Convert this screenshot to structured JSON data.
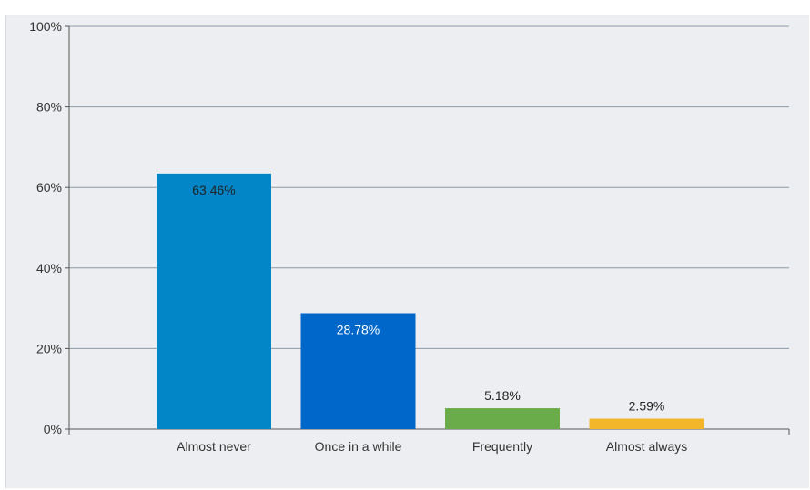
{
  "chart_data": {
    "type": "bar",
    "title": "",
    "xlabel": "",
    "ylabel": "",
    "categories": [
      "Almost never",
      "Once in a while",
      "Frequently",
      "Almost always"
    ],
    "values": [
      63.46,
      28.78,
      5.18,
      2.59
    ],
    "value_labels": [
      "63.46%",
      "28.78%",
      "5.18%",
      "2.59%"
    ],
    "colors": [
      "#0386C7",
      "#0067CA",
      "#6AAC4A",
      "#F3B52A"
    ],
    "value_label_colors": [
      "#222222",
      "#ffffff",
      "#222222",
      "#222222"
    ],
    "value_label_position": [
      "inside-top",
      "inside-top",
      "above",
      "above"
    ],
    "ylim": [
      0,
      100
    ],
    "y_ticks": [
      0,
      20,
      40,
      60,
      80,
      100
    ],
    "y_tick_labels": [
      "0%",
      "20%",
      "40%",
      "60%",
      "80%",
      "100%"
    ],
    "grid": "horizontal",
    "legend": "none"
  }
}
